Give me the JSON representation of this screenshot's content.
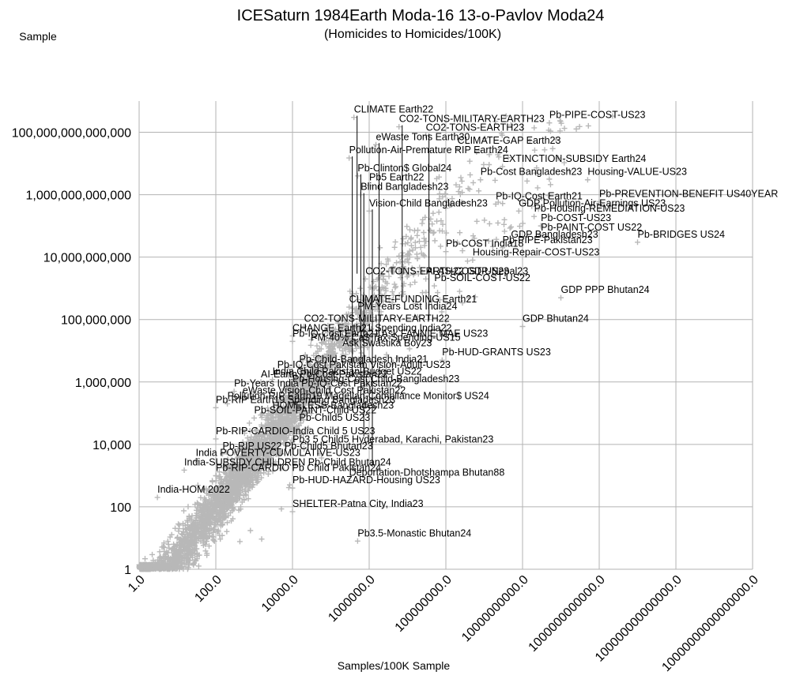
{
  "chart_data": {
    "type": "scatter",
    "title": "ICESaturn 1984Earth Moda-16 13-o-Pavlov Moda24",
    "subtitle": "(Homicides to Homicides/100K)",
    "ylabel": "Sample",
    "xlabel": "Samples/100K Sample",
    "x_scale": "log10",
    "y_scale": "log10",
    "xlim": [
      1,
      1e+16
    ],
    "ylim": [
      1,
      1000000000000000.0
    ],
    "x_ticks": [
      {
        "value": 1,
        "label": "1.0"
      },
      {
        "value": 100,
        "label": "100.0"
      },
      {
        "value": 10000,
        "label": "10000.0"
      },
      {
        "value": 1000000,
        "label": "1000000.0"
      },
      {
        "value": 100000000,
        "label": "100000000.0"
      },
      {
        "value": 10000000000,
        "label": "10000000000.0"
      },
      {
        "value": 1000000000000,
        "label": "1000000000000.0"
      },
      {
        "value": 100000000000000,
        "label": "100000000000000.0"
      },
      {
        "value": 10000000000000000,
        "label": "10000000000000000.0"
      }
    ],
    "y_ticks": [
      {
        "value": 1,
        "label": "1"
      },
      {
        "value": 100,
        "label": "100"
      },
      {
        "value": 10000,
        "label": "10,000"
      },
      {
        "value": 1000000,
        "label": "1,000,000"
      },
      {
        "value": 100000000,
        "label": "100,000,000"
      },
      {
        "value": 10000000000,
        "label": "10,000,000,000"
      },
      {
        "value": 1000000000000,
        "label": "1,000,000,000,000"
      },
      {
        "value": 100000000000000,
        "label": "100,000,000,000,000"
      }
    ],
    "grid": true,
    "marker": "+",
    "marker_color": "#b8b8b8",
    "cloud": [
      {
        "x": 100,
        "y": 100,
        "spread": 0.95,
        "n": 1800
      },
      {
        "x": 1000,
        "y": 3000,
        "spread": 1.0,
        "n": 700
      },
      {
        "x": 30000,
        "y": 1000000,
        "spread": 1.1,
        "n": 350
      },
      {
        "x": 1000000,
        "y": 300000000,
        "spread": 1.3,
        "n": 180
      },
      {
        "x": 1000000000.0,
        "y": 30000000000.0,
        "spread": 1.6,
        "n": 120
      }
    ],
    "annotations": [
      {
        "text": "CLIMATE Earth22",
        "x": 400000.0,
        "y": 300000000000000.0
      },
      {
        "text": "CO2-TONS-MILITARY-EARTH23",
        "x": 6000000.0,
        "y": 150000000000000.0
      },
      {
        "text": "Pb-PIPE-COST-US23",
        "x": 50000000000.0,
        "y": 200000000000000.0
      },
      {
        "text": "CO2-TONS-EARTH23",
        "x": 30000000.0,
        "y": 80000000000000.0
      },
      {
        "text": "eWaste Tons Earth30",
        "x": 1500000.0,
        "y": 40000000000000.0
      },
      {
        "text": "CLIMATE-GAP Earth23",
        "x": 200000000.0,
        "y": 30000000000000.0
      },
      {
        "text": "Pollution-Air-Premature RIP Earth24",
        "x": 300000.0,
        "y": 15000000000000.0
      },
      {
        "text": "EXTINCTION-SUBSIDY Earth24",
        "x": 3000000000.0,
        "y": 8000000000000.0
      },
      {
        "text": "Pb-Clinton$ Global24",
        "x": 500000.0,
        "y": 4000000000000.0
      },
      {
        "text": "Pb-Cost Bangladesh23",
        "x": 800000000.0,
        "y": 3000000000000.0
      },
      {
        "text": "Housing-VALUE-US23",
        "x": 500000000000.0,
        "y": 3000000000000.0
      },
      {
        "text": "Pb5 Earth22",
        "x": 1000000.0,
        "y": 2000000000000.0
      },
      {
        "text": "Blind Bangladesh23",
        "x": 600000.0,
        "y": 1000000000000.0
      },
      {
        "text": "Pb-PREVENTION-BENEFIT US40YEAR",
        "x": 1000000000000.0,
        "y": 600000000000.0
      },
      {
        "text": "Pb-IQ-Cost Earth21",
        "x": 2000000000.0,
        "y": 500000000000.0
      },
      {
        "text": "Vision-Child Bangladesh23",
        "x": 1000000.0,
        "y": 300000000000.0
      },
      {
        "text": "GDP Pollution-Air-Earnings US23",
        "x": 8000000000.0,
        "y": 300000000000.0
      },
      {
        "text": "Pb-Housing-REMEDIATION-US23",
        "x": 20000000000.0,
        "y": 200000000000.0
      },
      {
        "text": "Pb-COST-US23",
        "x": 30000000000.0,
        "y": 100000000000.0
      },
      {
        "text": "Pb-PAINT-COST US22",
        "x": 30000000000.0,
        "y": 50000000000.0
      },
      {
        "text": "GDP Bangladesh23",
        "x": 5000000000.0,
        "y": 30000000000.0
      },
      {
        "text": "Pb-BRIDGES US24",
        "x": 10000000000000.0,
        "y": 30000000000.0
      },
      {
        "text": "Pb-PIPE-Pakistan23",
        "x": 3000000000.0,
        "y": 20000000000.0
      },
      {
        "text": "Pb-COST India18",
        "x": 100000000.0,
        "y": 15000000000.0
      },
      {
        "text": "Housing-Repair-COST-US23",
        "x": 500000000.0,
        "y": 8000000000.0
      },
      {
        "text": "PFAS-COST-US23",
        "x": 30000000.0,
        "y": 2000000000.0
      },
      {
        "text": "CO2-TONS-EARTH22 GDP-Nepal23",
        "x": 800000.0,
        "y": 2000000000.0
      },
      {
        "text": "Pb-SOIL-COST-US22",
        "x": 50000000.0,
        "y": 1200000000.0
      },
      {
        "text": "GDP PPP Bhutan24",
        "x": 100000000000.0,
        "y": 500000000.0
      },
      {
        "text": "CLIMATE-FUNDING Earth21",
        "x": 300000.0,
        "y": 250000000.0
      },
      {
        "text": "PM-Years Lost India24",
        "x": 500000.0,
        "y": 150000000.0
      },
      {
        "text": "GDP Bhutan24",
        "x": 10000000000.0,
        "y": 60000000.0
      },
      {
        "text": "CO2-TONS-MILITARY-EARTH22",
        "x": 20000.0,
        "y": 60000000.0
      },
      {
        "text": "CHANGE Earth21 Spending India22",
        "x": 10000.0,
        "y": 30000000.0
      },
      {
        "text": "Pb-IQ-Cost Earth21 Ask FANNIE MAE US23",
        "x": 10000.0,
        "y": 20000000.0
      },
      {
        "text": "PM-40% Ca$ Tax-Spending-US15",
        "x": 30000.0,
        "y": 15000000.0
      },
      {
        "text": "Ask Swastika Boy23",
        "x": 200000.0,
        "y": 10000000.0
      },
      {
        "text": "Pb-HUD-GRANTS US23",
        "x": 80000000.0,
        "y": 5000000.0
      },
      {
        "text": "Pb-Child-Bangladesh India21",
        "x": 15000.0,
        "y": 3000000.0
      },
      {
        "text": "Pb-IQ-Cost Pakistan Vision-Adult-US23",
        "x": 4000.0,
        "y": 2000000.0
      },
      {
        "text": "India Child Pakistan-Budget US22",
        "x": 3000.0,
        "y": 1200000.0
      },
      {
        "text": "AI-Earth Pb-Cost-Pakistan22",
        "x": 1500.0,
        "y": 1000000.0
      },
      {
        "text": "Pb-Housing-Cost Child-Bangladesh23",
        "x": 10000.0,
        "y": 700000.0
      },
      {
        "text": "Pb-Years India Pb-IQ-Cost Pakistan22",
        "x": 300,
        "y": 500000.0
      },
      {
        "text": "eWaste Vision-Child Cost Pakistan22",
        "x": 500,
        "y": 300000.0
      },
      {
        "text": "Pollution-RIP Earth19 Magellan-Compliance Monitor$ US24",
        "x": 200,
        "y": 200000.0
      },
      {
        "text": "Pb-RIP Earth19 Spending Bangladesh23",
        "x": 100,
        "y": 150000.0
      },
      {
        "text": "HOMELESS-Bangladesh23",
        "x": 3000.0,
        "y": 100000.0
      },
      {
        "text": "Pb-SOIL-PAINT-Child US22",
        "x": 1000.0,
        "y": 70000.0
      },
      {
        "text": "Pb-Child5 US23",
        "x": 15000.0,
        "y": 40000.0
      },
      {
        "text": "Pb-RIP-CARDIO-India Child 5 US23",
        "x": 100,
        "y": 15000.0
      },
      {
        "text": "Pb3 5 Child5 Hyderabad, Karachi, Pakistan23",
        "x": 10000.0,
        "y": 8000.0
      },
      {
        "text": "Pb-RIP US22 Pb-Child5 Bhutan23",
        "x": 150,
        "y": 5000.0
      },
      {
        "text": "India POVERTY-CUMULATIVE-US23",
        "x": 30,
        "y": 3000.0
      },
      {
        "text": "India-SUBSIDY CHILDREN Pb-Child Bhutan24",
        "x": 15,
        "y": 1500.0
      },
      {
        "text": "Pb-RIP-CARDIO Pb Child Pakistan24",
        "x": 100,
        "y": 1000.0
      },
      {
        "text": "Deportation-Dhotshampa Bhutan88",
        "x": 300000.0,
        "y": 700
      },
      {
        "text": "Pb-HUD-HAZARD-Housing US23",
        "x": 10000.0,
        "y": 400
      },
      {
        "text": "India-HOM 2022",
        "x": 3,
        "y": 200
      },
      {
        "text": "SHELTER-Patna City, India23",
        "x": 10000.0,
        "y": 70
      },
      {
        "text": "Pb3.5-Monastic Bhutan24",
        "x": 500000.0,
        "y": 8
      }
    ]
  }
}
